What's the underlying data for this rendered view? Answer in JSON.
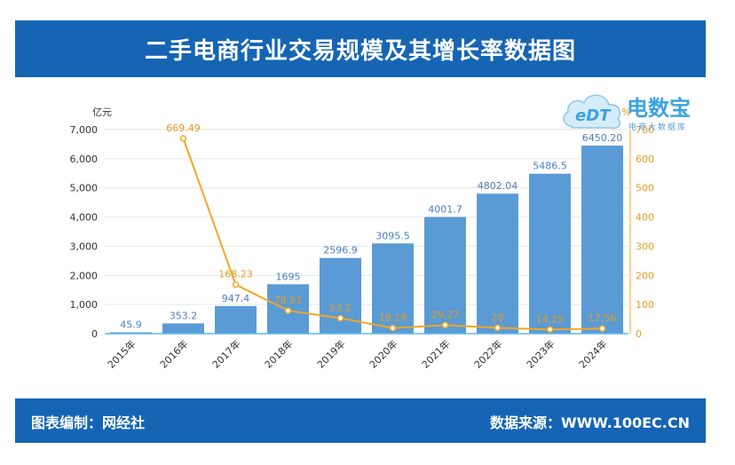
{
  "header": {
    "title": "二手电商行业交易规模及其增长率数据图"
  },
  "footer": {
    "left": "图表编制：网经社",
    "right": "数据来源：WWW.100EC.CN"
  },
  "logo": {
    "mark": "eDT",
    "name": "电数宝",
    "sub": "电商大数据库"
  },
  "colors": {
    "bar": "#5b9bd5",
    "line": "#f5a623",
    "banner": "#1565b4"
  },
  "chart_data": {
    "type": "bar",
    "categories": [
      "2015年",
      "2016年",
      "2017年",
      "2018年",
      "2019年",
      "2020年",
      "2021年",
      "2022年",
      "2023年",
      "2024年"
    ],
    "series": [
      {
        "values": [
          45.9,
          353.2,
          947.4,
          1695,
          2596.9,
          3095.5,
          4001.7,
          4802.04,
          5486.5,
          6450.2
        ],
        "labels": [
          "45.9",
          "353.2",
          "947.4",
          "1695",
          "2596.9",
          "3095.5",
          "4001.7",
          "4802.04",
          "5486.5",
          "6450.20"
        ],
        "axis": "left",
        "kind": "bar"
      },
      {
        "values": [
          null,
          669.49,
          168.23,
          78.91,
          53.2,
          19.19,
          29.27,
          20,
          14.25,
          17.56
        ],
        "labels": [
          "",
          "669.49",
          "168.23",
          "78.91",
          "53.2",
          "19.19",
          "29.27",
          "20",
          "14.25",
          "17.56"
        ],
        "axis": "right",
        "kind": "line"
      }
    ],
    "ylabel": "亿元",
    "y2label": "%",
    "ylim": [
      0,
      7000
    ],
    "y2lim": [
      0,
      700
    ],
    "yticks": [
      "0",
      "1,000",
      "2,000",
      "3,000",
      "4,000",
      "5,000",
      "6,000",
      "7,000"
    ],
    "y2ticks": [
      "0",
      "100",
      "200",
      "300",
      "400",
      "500",
      "600",
      "700"
    ],
    "grid": true
  }
}
